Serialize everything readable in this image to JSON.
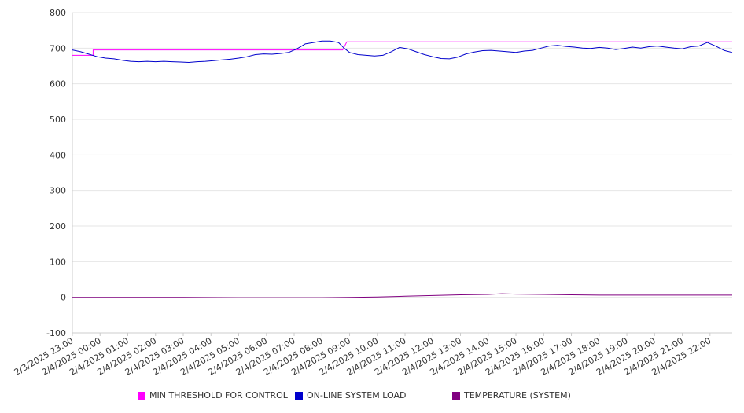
{
  "chart_data": {
    "type": "line",
    "y_ticks": [
      -100,
      0,
      100,
      200,
      300,
      400,
      500,
      600,
      700,
      800
    ],
    "ylim": [
      -100,
      800
    ],
    "x_range_hours": [
      0,
      23.8
    ],
    "x_tick_labels": [
      "2/3/2025 23:00",
      "2/4/2025 00:00",
      "2/4/2025 01:00",
      "2/4/2025 02:00",
      "2/4/2025 03:00",
      "2/4/2025 04:00",
      "2/4/2025 05:00",
      "2/4/2025 06:00",
      "2/4/2025 07:00",
      "2/4/2025 08:00",
      "2/4/2025 09:00",
      "2/4/2025 10:00",
      "2/4/2025 11:00",
      "2/4/2025 12:00",
      "2/4/2025 13:00",
      "2/4/2025 14:00",
      "2/4/2025 15:00",
      "2/4/2025 16:00",
      "2/4/2025 17:00",
      "2/4/2025 18:00",
      "2/4/2025 19:00",
      "2/4/2025 20:00",
      "2/4/2025 21:00",
      "2/4/2025 22:00"
    ],
    "grid": true,
    "legend_position": "bottom",
    "series": [
      {
        "name": "MIN THRESHOLD FOR CONTROL",
        "color": "#ff00ff",
        "x": [
          0,
          0.75,
          0.75,
          9.75,
          9.9,
          23.8
        ],
        "y": [
          680,
          680,
          695,
          695,
          718,
          718
        ]
      },
      {
        "name": "ON-LINE SYSTEM LOAD",
        "color": "#0000cc",
        "x": [
          0,
          0.3,
          0.6,
          0.9,
          1.2,
          1.5,
          1.8,
          2.1,
          2.4,
          2.7,
          3.0,
          3.3,
          3.6,
          3.9,
          4.2,
          4.5,
          4.8,
          5.1,
          5.4,
          5.7,
          6.0,
          6.3,
          6.6,
          6.9,
          7.2,
          7.5,
          7.8,
          8.1,
          8.4,
          8.7,
          9.0,
          9.3,
          9.6,
          9.8,
          10.0,
          10.3,
          10.6,
          10.9,
          11.2,
          11.5,
          11.8,
          12.1,
          12.4,
          12.7,
          13.0,
          13.3,
          13.6,
          13.9,
          14.2,
          14.5,
          14.8,
          15.1,
          15.4,
          15.7,
          16.0,
          16.3,
          16.6,
          16.9,
          17.2,
          17.5,
          17.8,
          18.1,
          18.4,
          18.7,
          19.0,
          19.3,
          19.6,
          19.9,
          20.2,
          20.5,
          20.8,
          21.1,
          21.4,
          21.7,
          22.0,
          22.3,
          22.6,
          22.9,
          23.2,
          23.5,
          23.8
        ],
        "y": [
          695,
          690,
          683,
          676,
          672,
          670,
          666,
          663,
          662,
          663,
          662,
          663,
          662,
          661,
          660,
          662,
          663,
          665,
          667,
          669,
          672,
          676,
          682,
          684,
          683,
          685,
          688,
          698,
          712,
          716,
          720,
          720,
          716,
          700,
          688,
          682,
          680,
          678,
          680,
          690,
          702,
          698,
          690,
          682,
          676,
          671,
          670,
          675,
          684,
          689,
          693,
          694,
          692,
          690,
          688,
          692,
          694,
          700,
          706,
          708,
          705,
          703,
          700,
          699,
          702,
          700,
          696,
          699,
          703,
          700,
          704,
          706,
          703,
          700,
          698,
          704,
          706,
          716,
          706,
          694,
          688
        ]
      },
      {
        "name": "TEMPERATURE (SYSTEM)",
        "color": "#800080",
        "x": [
          0,
          2,
          4,
          6,
          8,
          9,
          10,
          11,
          12,
          13,
          14,
          15,
          15.5,
          16,
          17,
          18,
          19,
          20,
          21,
          22,
          23.8
        ],
        "y": [
          0,
          0,
          0,
          -1,
          -1,
          -1,
          0,
          1,
          3,
          5,
          7,
          8,
          10,
          9,
          8,
          7,
          6,
          6,
          6,
          6,
          6
        ]
      }
    ]
  }
}
